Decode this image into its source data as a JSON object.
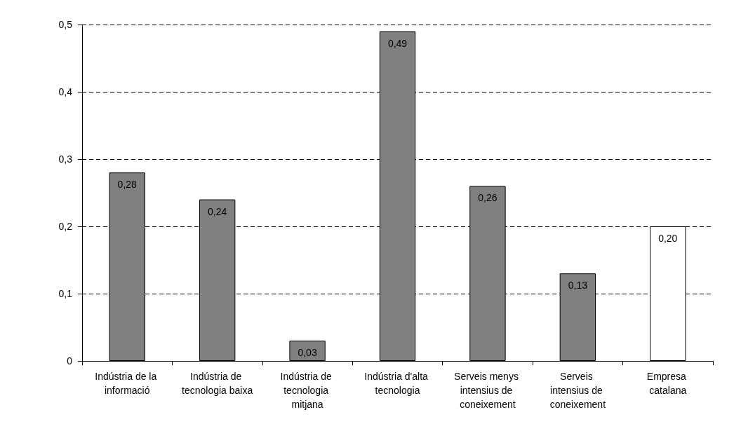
{
  "chart_data": {
    "type": "bar",
    "categories": [
      "Indústria de la informació",
      "Indústria de tecnologia baixa",
      "Indústria de tecnologia mitjana",
      "Indústria d'alta tecnologia",
      "Serveis menys intensius de coneixement",
      "Serveis intensius de coneixement",
      "Empresa catalana"
    ],
    "values": [
      0.28,
      0.24,
      0.03,
      0.49,
      0.26,
      0.13,
      0.2
    ],
    "value_labels": [
      "0,28",
      "0,24",
      "0,03",
      "0,49",
      "0,26",
      "0,13",
      "0,20"
    ],
    "colors": [
      "#808080",
      "#808080",
      "#808080",
      "#808080",
      "#808080",
      "#808080",
      "#ffffff"
    ],
    "ylim": [
      0,
      0.5
    ],
    "yticks": [
      0,
      {
        "value": 0.1,
        "label": "0,1"
      },
      {
        "value": 0.2,
        "label": "0,2"
      },
      {
        "value": 0.3,
        "label": "0,3"
      },
      {
        "value": 0.4,
        "label": "0,4"
      },
      {
        "value": 0.5,
        "label": "0,5"
      }
    ],
    "grid": "y"
  }
}
